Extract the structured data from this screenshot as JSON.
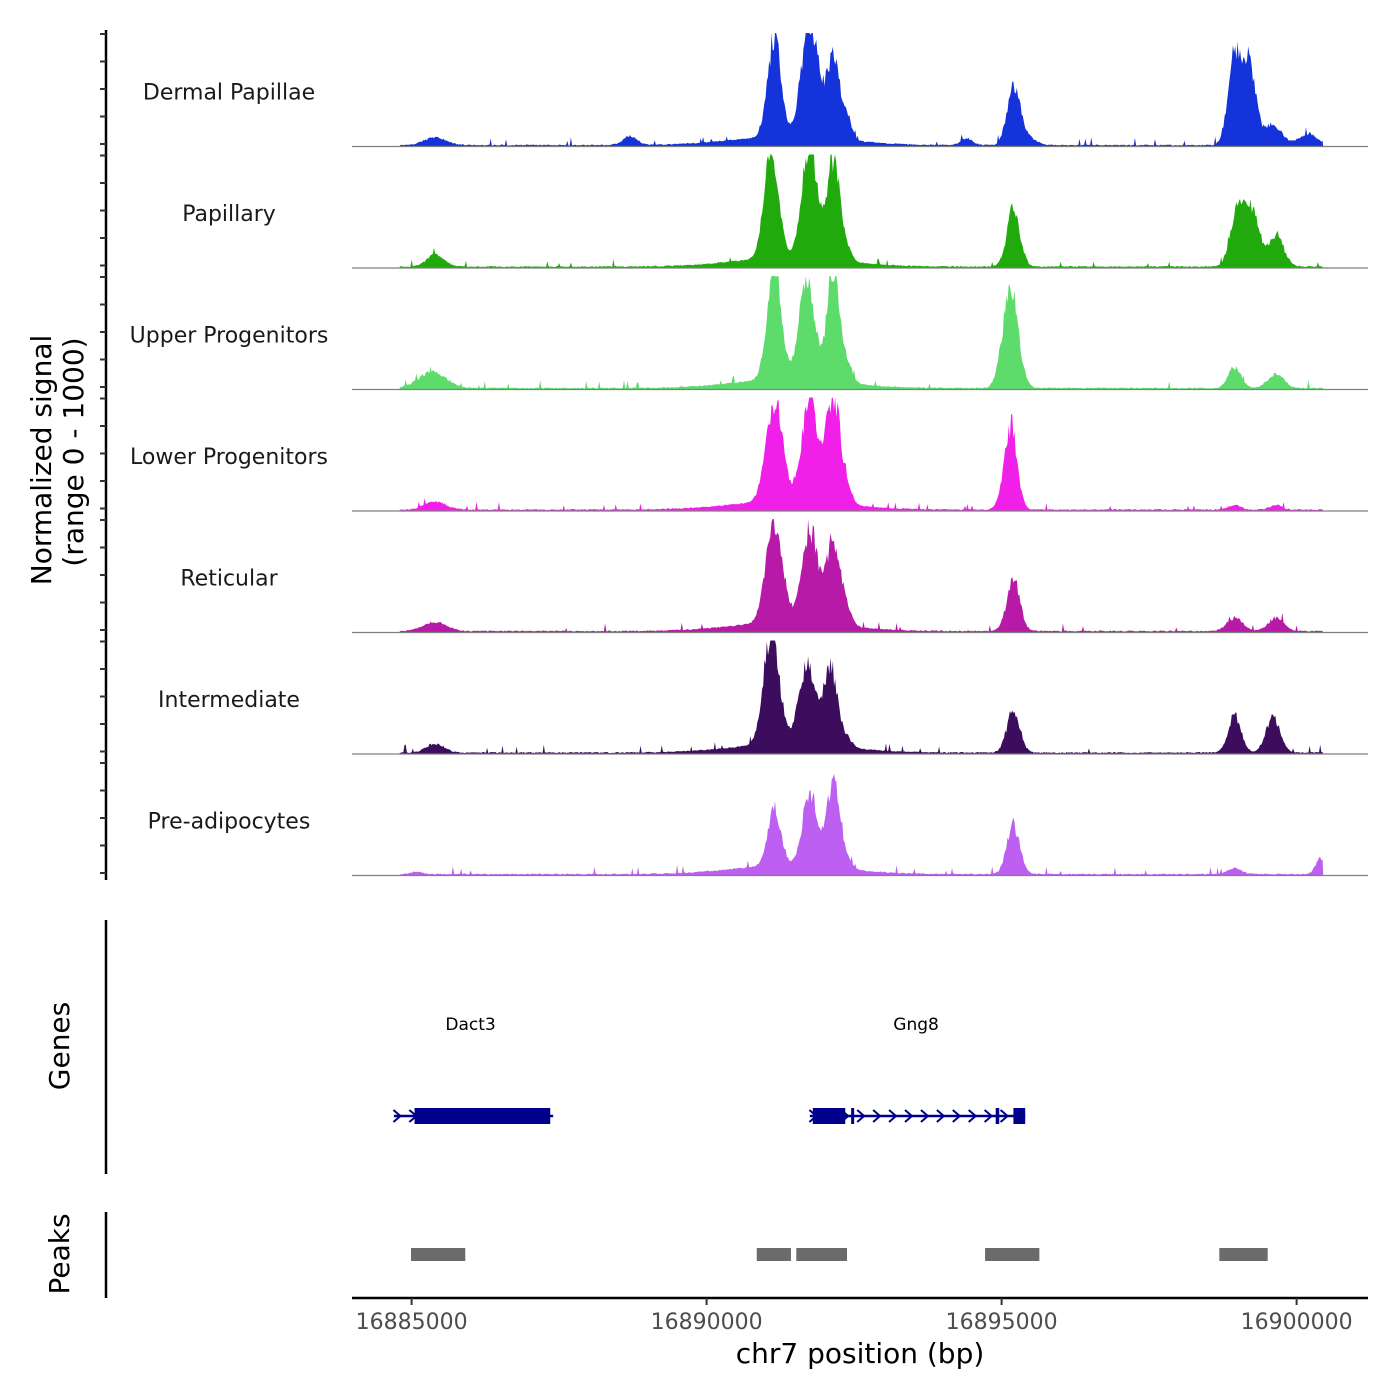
{
  "chart_data": {
    "type": "area",
    "title": "",
    "xlabel": "chr7 position (bp)",
    "ylabel_line1": "Normalized signal",
    "ylabel_line2": "(range 0 - 1000)",
    "genes_label": "Genes",
    "peaks_label": "Peaks",
    "xlim": [
      16883990,
      16901210
    ],
    "x_ticks": [
      {
        "value": 16885000,
        "label": "16885000"
      },
      {
        "value": 16890000,
        "label": "16890000"
      },
      {
        "value": 16895000,
        "label": "16895000"
      },
      {
        "value": 16900000,
        "label": "16900000"
      }
    ],
    "signal_x_range": [
      16884800,
      16900450
    ],
    "ylim": [
      0,
      1000
    ],
    "baseline_color": "#7f7f7f",
    "series": [
      {
        "name": "Dermal Papillae",
        "color": "#1533da"
      },
      {
        "name": "Papillary",
        "color": "#20aa0c"
      },
      {
        "name": "Upper Progenitors",
        "color": "#5ddc6b"
      },
      {
        "name": "Lower Progenitors",
        "color": "#f020e8"
      },
      {
        "name": "Reticular",
        "color": "#b81aa8"
      },
      {
        "name": "Intermediate",
        "color": "#3b0d5c"
      },
      {
        "name": "Pre-adipocytes",
        "color": "#bd5ff0"
      }
    ],
    "peak_profiles": {
      "Dermal Papillae": [
        [
          16885400,
          70,
          180
        ],
        [
          16888700,
          75,
          120
        ],
        [
          16891150,
          880,
          110
        ],
        [
          16891750,
          1000,
          140
        ],
        [
          16892150,
          700,
          120
        ],
        [
          16892400,
          150,
          70
        ],
        [
          16894400,
          60,
          100
        ],
        [
          16895200,
          480,
          110
        ],
        [
          16895400,
          80,
          150
        ],
        [
          16898950,
          800,
          110
        ],
        [
          16899200,
          700,
          110
        ],
        [
          16899600,
          180,
          150
        ],
        [
          16900200,
          100,
          150
        ]
      ],
      "Papillary": [
        [
          16885400,
          100,
          150
        ],
        [
          16891100,
          960,
          120
        ],
        [
          16891750,
          1000,
          130
        ],
        [
          16892150,
          880,
          110
        ],
        [
          16892400,
          90,
          70
        ],
        [
          16895200,
          500,
          110
        ],
        [
          16899000,
          500,
          120
        ],
        [
          16899250,
          450,
          120
        ],
        [
          16899650,
          280,
          130
        ]
      ],
      "Upper Progenitors": [
        [
          16885350,
          140,
          230
        ],
        [
          16891150,
          1000,
          120
        ],
        [
          16891700,
          890,
          130
        ],
        [
          16892150,
          960,
          110
        ],
        [
          16892400,
          120,
          90
        ],
        [
          16895150,
          880,
          130
        ],
        [
          16898950,
          180,
          110
        ],
        [
          16899650,
          130,
          130
        ]
      ],
      "Lower Progenitors": [
        [
          16885400,
          70,
          180
        ],
        [
          16891150,
          880,
          140
        ],
        [
          16891750,
          920,
          130
        ],
        [
          16892150,
          950,
          120
        ],
        [
          16892400,
          100,
          80
        ],
        [
          16895150,
          730,
          110
        ],
        [
          16898950,
          40,
          100
        ],
        [
          16899650,
          40,
          100
        ]
      ],
      "Reticular": [
        [
          16885400,
          80,
          200
        ],
        [
          16891150,
          890,
          140
        ],
        [
          16891750,
          830,
          130
        ],
        [
          16892150,
          760,
          120
        ],
        [
          16892400,
          100,
          80
        ],
        [
          16895200,
          460,
          110
        ],
        [
          16898950,
          120,
          130
        ],
        [
          16899650,
          120,
          130
        ]
      ],
      "Intermediate": [
        [
          16885400,
          80,
          150
        ],
        [
          16891100,
          1000,
          130
        ],
        [
          16891700,
          690,
          140
        ],
        [
          16892100,
          690,
          120
        ],
        [
          16892400,
          70,
          80
        ],
        [
          16895200,
          380,
          110
        ],
        [
          16898950,
          320,
          110
        ],
        [
          16899600,
          310,
          120
        ]
      ],
      "Pre-adipocytes": [
        [
          16885100,
          20,
          100
        ],
        [
          16891150,
          500,
          110
        ],
        [
          16891750,
          670,
          120
        ],
        [
          16892150,
          780,
          110
        ],
        [
          16892400,
          60,
          80
        ],
        [
          16895200,
          430,
          110
        ],
        [
          16898950,
          50,
          120
        ],
        [
          16900400,
          130,
          80
        ]
      ]
    },
    "broad_shoulders": [
      [
        16891400,
        0.08,
        900
      ]
    ],
    "genes": [
      {
        "name": "Dact3",
        "label_x": 16886000,
        "start": 16884700,
        "end": 16887400,
        "strand": "+",
        "blocks": [
          [
            16885050,
            16887350
          ]
        ]
      },
      {
        "name": "Gng8",
        "label_x": 16893550,
        "start": 16891750,
        "end": 16895400,
        "strand": "+",
        "blocks": [
          [
            16891800,
            16892350
          ],
          [
            16892450,
            16892500
          ],
          [
            16894900,
            16894960
          ],
          [
            16895200,
            16895400
          ]
        ]
      }
    ],
    "peaks": [
      [
        16884990,
        16885910
      ],
      [
        16890850,
        16891430
      ],
      [
        16891520,
        16892380
      ],
      [
        16894720,
        16895640
      ],
      [
        16898690,
        16899510
      ]
    ]
  }
}
